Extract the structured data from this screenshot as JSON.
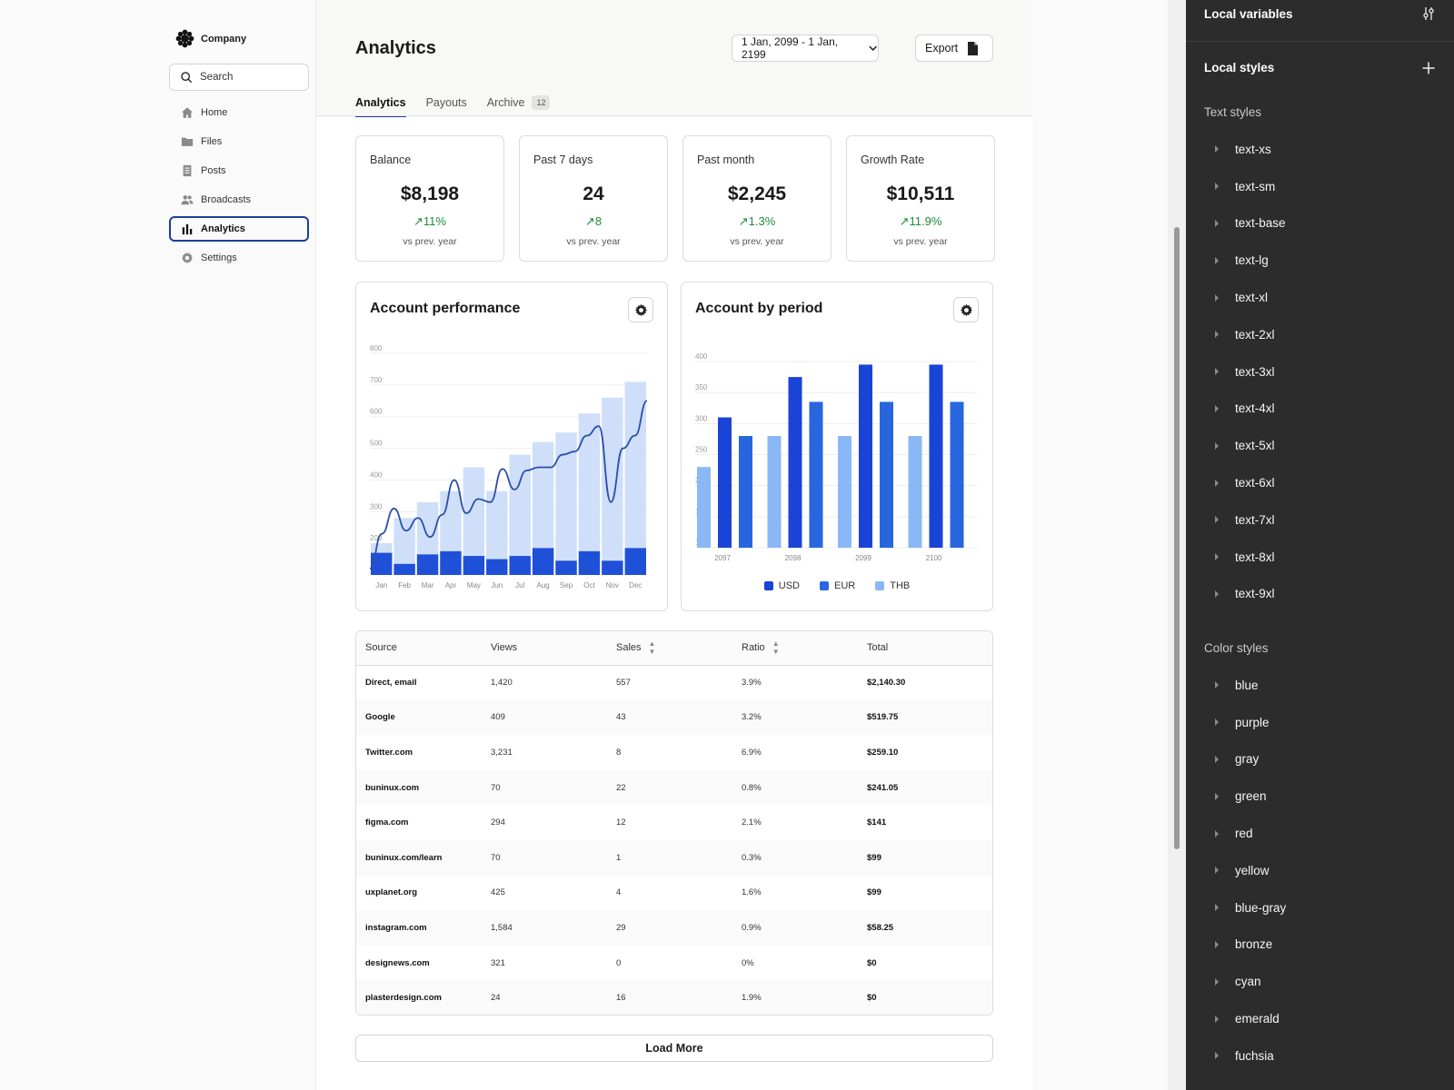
{
  "brand": {
    "name": "Company"
  },
  "search": {
    "placeholder": "Search"
  },
  "nav": [
    {
      "label": "Home",
      "icon": "home-icon"
    },
    {
      "label": "Files",
      "icon": "folder-icon"
    },
    {
      "label": "Posts",
      "icon": "document-icon"
    },
    {
      "label": "Broadcasts",
      "icon": "users-icon"
    },
    {
      "label": "Analytics",
      "icon": "bar-chart-icon",
      "active": true
    },
    {
      "label": "Settings",
      "icon": "gear-icon"
    }
  ],
  "header": {
    "title": "Analytics",
    "date_range": "1 Jan, 2099 - 1 Jan, 2199",
    "export_label": "Export",
    "tabs": [
      {
        "label": "Analytics",
        "active": true
      },
      {
        "label": "Payouts"
      },
      {
        "label": "Archive",
        "badge": "12"
      }
    ]
  },
  "stats": [
    {
      "label": "Balance",
      "value": "$8,198",
      "delta": "11%",
      "sub": "vs prev. year"
    },
    {
      "label": "Past 7 days",
      "value": "24",
      "delta": "8",
      "sub": "vs prev. year"
    },
    {
      "label": "Past month",
      "value": "$2,245",
      "delta": "1.3%",
      "sub": "vs prev. year"
    },
    {
      "label": "Growth Rate",
      "value": "$10,511",
      "delta": "11.9%",
      "sub": "vs prev. year"
    }
  ],
  "chart_data": [
    {
      "type": "bar",
      "title": "Account performance",
      "categories": [
        "Jan",
        "Feb",
        "Mar",
        "Apr",
        "May",
        "Jun",
        "Jul",
        "Aug",
        "Sep",
        "Oct",
        "Nov",
        "Dec"
      ],
      "ylim": [
        100,
        800
      ],
      "yticks": [
        200,
        300,
        400,
        500,
        600,
        700,
        800
      ],
      "series": [
        {
          "values": [
            200,
            280,
            330,
            365,
            440,
            365,
            480,
            520,
            550,
            610,
            660,
            710
          ],
          "color": "#cfdffa"
        },
        {
          "values": [
            170,
            135,
            165,
            175,
            160,
            150,
            160,
            185,
            145,
            175,
            145,
            185
          ],
          "color": "#1f50d8"
        }
      ],
      "line": [
        120,
        230,
        310,
        240,
        280,
        220,
        290,
        400,
        295,
        340,
        330,
        435,
        370,
        430,
        440,
        440,
        480,
        490,
        540,
        570,
        330,
        500,
        540,
        650
      ],
      "line_color": "#2a4fa8",
      "grid": true
    },
    {
      "type": "bar",
      "title": "Account by period",
      "categories": [
        "2097",
        "2098",
        "2099",
        "2100"
      ],
      "ylim": [
        100,
        400
      ],
      "yticks": [
        100,
        150,
        200,
        250,
        300,
        350,
        400
      ],
      "series": [
        {
          "name": "USD",
          "values": [
            310,
            375,
            395,
            395
          ],
          "color": "#1a44d6"
        },
        {
          "name": "EUR",
          "values": [
            280,
            335,
            335,
            335
          ],
          "color": "#2866e0"
        },
        {
          "name": "THB",
          "values": [
            230,
            280,
            280,
            280
          ],
          "color": "#8ab7f5"
        }
      ],
      "legend": "bottom",
      "grid": true
    }
  ],
  "table": {
    "columns": [
      "Source",
      "Views",
      "Sales",
      "Ratio",
      "Total"
    ],
    "sortable": [
      false,
      false,
      true,
      true,
      false
    ],
    "rows": [
      [
        "Direct, email",
        "1,420",
        "557",
        "3.9%",
        "$2,140.30"
      ],
      [
        "Google",
        "409",
        "43",
        "3.2%",
        "$519.75"
      ],
      [
        "Twitter.com",
        "3,231",
        "8",
        "6.9%",
        "$259.10"
      ],
      [
        "buninux.com",
        "70",
        "22",
        "0.8%",
        "$241.05"
      ],
      [
        "figma.com",
        "294",
        "12",
        "2.1%",
        "$141"
      ],
      [
        "buninux.com/learn",
        "70",
        "1",
        "0.3%",
        "$99"
      ],
      [
        "uxplanet.org",
        "425",
        "4",
        "1.6%",
        "$99"
      ],
      [
        "instagram.com",
        "1,584",
        "29",
        "0.9%",
        "$58.25"
      ],
      [
        "designews.com",
        "321",
        "0",
        "0%",
        "$0"
      ],
      [
        "plasterdesign.com",
        "24",
        "16",
        "1.9%",
        "$0"
      ]
    ],
    "load_more": "Load More"
  },
  "panel": {
    "local_variables": "Local variables",
    "local_styles": "Local styles",
    "text_styles_title": "Text styles",
    "text_styles": [
      "text-xs",
      "text-sm",
      "text-base",
      "text-lg",
      "text-xl",
      "text-2xl",
      "text-3xl",
      "text-4xl",
      "text-5xl",
      "text-6xl",
      "text-7xl",
      "text-8xl",
      "text-9xl"
    ],
    "color_styles_title": "Color styles",
    "color_styles": [
      "blue",
      "purple",
      "gray",
      "green",
      "red",
      "yellow",
      "blue-gray",
      "bronze",
      "cyan",
      "emerald",
      "fuchsia"
    ]
  }
}
